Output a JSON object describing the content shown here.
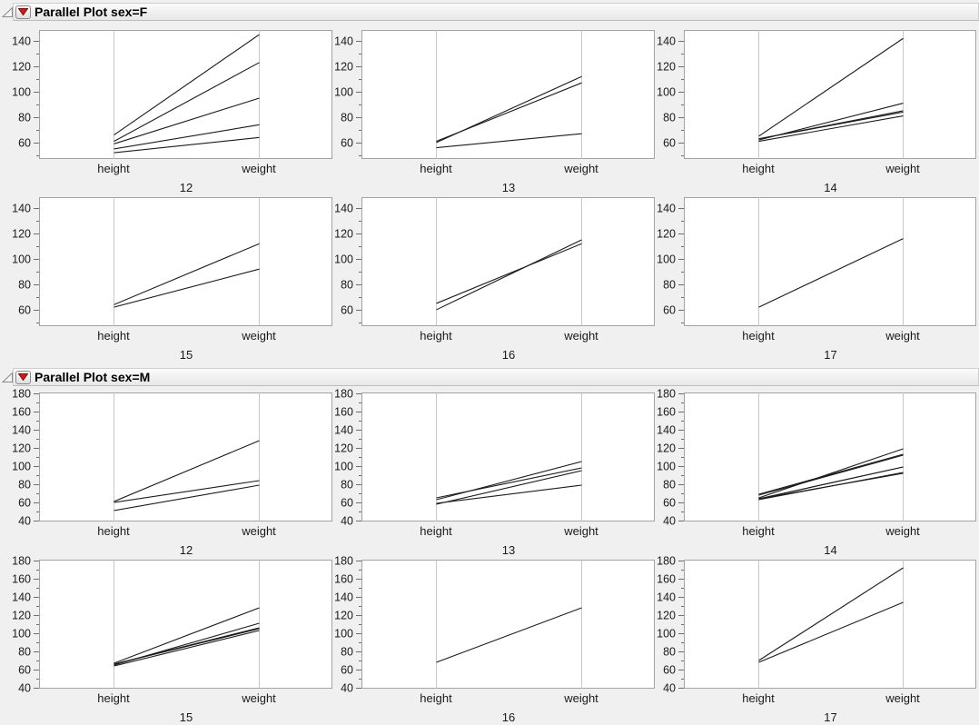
{
  "window": {
    "kind": "report-surface"
  },
  "colors": {
    "page_bg": "#f0f0f0",
    "plot_bg": "#ffffff",
    "frame_border": "#a3a3a3",
    "axis_line": "#c9c9c9",
    "tick": "#6e6e6e",
    "text": "#1a1a1a",
    "data_line": "#1b1b1b",
    "menu_red": "#c9201d",
    "menu_red_border": "#7a0c0c",
    "disclosure_gray": "#8a8a8a"
  },
  "icons": [
    {
      "name": "disclosure-open-icon",
      "meaning": "collapse section"
    },
    {
      "name": "red-triangle-menu-icon",
      "meaning": "report options menu"
    }
  ],
  "chart_data": [
    {
      "type": "line",
      "subtype": "parallel-coordinates",
      "title": "Parallel Plot sex=F",
      "categories": [
        "height",
        "weight"
      ],
      "ylim": [
        47.8,
        148.6
      ],
      "yticks_major": [
        60,
        80,
        100,
        120,
        140
      ],
      "yticks_minor": [
        50,
        70,
        90,
        110,
        130
      ],
      "grid": false,
      "legend": "none",
      "panels": [
        {
          "group": "12",
          "lines": [
            {
              "height": 66,
              "weight": 145
            },
            {
              "height": 61,
              "weight": 123
            },
            {
              "height": 59,
              "weight": 95
            },
            {
              "height": 55,
              "weight": 74
            },
            {
              "height": 52,
              "weight": 64
            }
          ]
        },
        {
          "group": "13",
          "lines": [
            {
              "height": 60,
              "weight": 112
            },
            {
              "height": 61,
              "weight": 107
            },
            {
              "height": 56,
              "weight": 67
            }
          ]
        },
        {
          "group": "14",
          "lines": [
            {
              "height": 65,
              "weight": 142
            },
            {
              "height": 62,
              "weight": 91
            },
            {
              "height": 63,
              "weight": 85
            },
            {
              "height": 63,
              "weight": 84
            },
            {
              "height": 61,
              "weight": 81
            }
          ]
        },
        {
          "group": "15",
          "lines": [
            {
              "height": 64,
              "weight": 112
            },
            {
              "height": 62,
              "weight": 92
            }
          ]
        },
        {
          "group": "16",
          "lines": [
            {
              "height": 65,
              "weight": 112
            },
            {
              "height": 60,
              "weight": 115
            }
          ]
        },
        {
          "group": "17",
          "lines": [
            {
              "height": 62,
              "weight": 116
            }
          ]
        }
      ]
    },
    {
      "type": "line",
      "subtype": "parallel-coordinates",
      "title": "Parallel Plot sex=M",
      "categories": [
        "height",
        "weight"
      ],
      "ylim": [
        40,
        181
      ],
      "yticks_major": [
        40,
        60,
        80,
        100,
        120,
        140,
        160,
        180
      ],
      "yticks_minor": [
        50,
        70,
        90,
        110,
        130,
        150,
        170
      ],
      "grid": false,
      "legend": "none",
      "panels": [
        {
          "group": "12",
          "lines": [
            {
              "height": 61,
              "weight": 128
            },
            {
              "height": 60,
              "weight": 84
            },
            {
              "height": 51,
              "weight": 79
            }
          ]
        },
        {
          "group": "13",
          "lines": [
            {
              "height": 63,
              "weight": 105
            },
            {
              "height": 65,
              "weight": 98
            },
            {
              "height": 58,
              "weight": 95
            },
            {
              "height": 59,
              "weight": 79
            }
          ]
        },
        {
          "group": "14",
          "lines": [
            {
              "height": 65,
              "weight": 119
            },
            {
              "height": 69,
              "weight": 113
            },
            {
              "height": 68,
              "weight": 112
            },
            {
              "height": 64,
              "weight": 99
            },
            {
              "height": 64,
              "weight": 99
            },
            {
              "height": 63,
              "weight": 93
            },
            {
              "height": 64,
              "weight": 92
            }
          ]
        },
        {
          "group": "15",
          "lines": [
            {
              "height": 67,
              "weight": 128
            },
            {
              "height": 65,
              "weight": 111
            },
            {
              "height": 66,
              "weight": 106
            },
            {
              "height": 66,
              "weight": 105
            },
            {
              "height": 64,
              "weight": 103
            }
          ]
        },
        {
          "group": "16",
          "lines": [
            {
              "height": 68,
              "weight": 128
            }
          ]
        },
        {
          "group": "17",
          "lines": [
            {
              "height": 70,
              "weight": 172
            },
            {
              "height": 68,
              "weight": 134
            }
          ]
        }
      ]
    }
  ]
}
